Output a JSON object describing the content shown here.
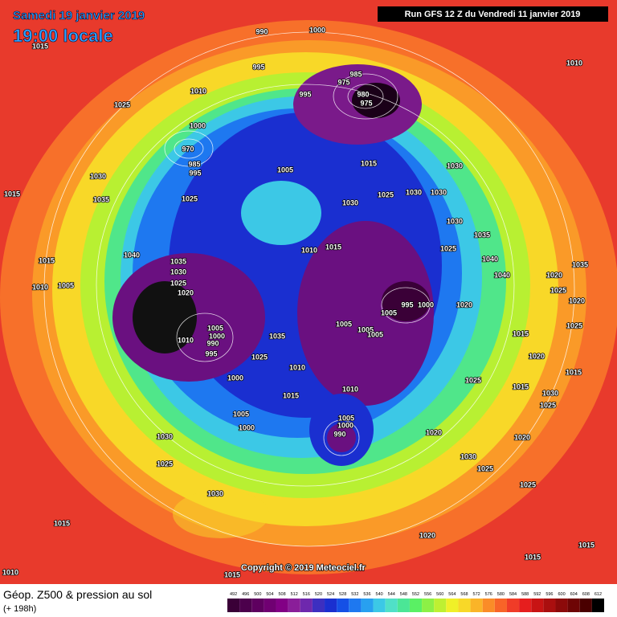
{
  "header": {
    "date": "Samedi 19 janvier 2019",
    "time": "19:00 locale",
    "run": "Run GFS 12 Z du Vendredi 11 janvier 2019"
  },
  "map": {
    "copyright": "Copyright © 2019 Meteociel.fr",
    "pressure_labels": [
      "1000",
      "1015",
      "990",
      "995",
      "985",
      "975",
      "980",
      "975",
      "995",
      "1010",
      "1025",
      "1010",
      "1000",
      "970",
      "985",
      "995",
      "1005",
      "1015",
      "1030",
      "1025",
      "1030",
      "1030",
      "1030",
      "1030",
      "1015",
      "1035",
      "1025",
      "1030",
      "1035",
      "1025",
      "1040",
      "1010",
      "1015",
      "1040",
      "1035",
      "1030",
      "1025",
      "1020",
      "1015",
      "1010",
      "1005",
      "1040",
      "1020",
      "1035",
      "995",
      "1000",
      "1005",
      "1020",
      "1025",
      "1020",
      "1005",
      "1000",
      "990",
      "995",
      "1010",
      "1005",
      "1005",
      "1005",
      "1035",
      "1025",
      "1010",
      "1015",
      "1025",
      "1020",
      "1015",
      "1000",
      "1025",
      "1015",
      "1030",
      "1025",
      "1010",
      "1015",
      "1005",
      "1000",
      "1005",
      "1000",
      "990",
      "1020",
      "1020",
      "1030",
      "1030",
      "1025",
      "1025",
      "1025",
      "1030",
      "1015",
      "1020",
      "1015",
      "1015",
      "1010",
      "1015"
    ]
  },
  "legend": {
    "title": "Géop. Z500 & pression au sol",
    "subtitle": "(+ 198h)",
    "levels": [
      492,
      496,
      500,
      504,
      508,
      512,
      516,
      520,
      524,
      528,
      532,
      536,
      540,
      544,
      548,
      552,
      556,
      560,
      564,
      568,
      572,
      576,
      580,
      584,
      588,
      592,
      596,
      600,
      604,
      608,
      612
    ],
    "colors": [
      "#3a0037",
      "#4c004c",
      "#5e005f",
      "#700072",
      "#820085",
      "#8a1e99",
      "#6e28ad",
      "#3c2fc0",
      "#1a2fd0",
      "#1550e6",
      "#1e78f0",
      "#28a0f0",
      "#3cc8e6",
      "#50e0c8",
      "#4be696",
      "#5af064",
      "#8cf046",
      "#bef032",
      "#f0f028",
      "#f8d828",
      "#fab428",
      "#fa8c28",
      "#f86428",
      "#f03c28",
      "#e61e1e",
      "#c81414",
      "#aa0f0f",
      "#8c0a0a",
      "#6e0505",
      "#4a0000",
      "#000000"
    ]
  }
}
